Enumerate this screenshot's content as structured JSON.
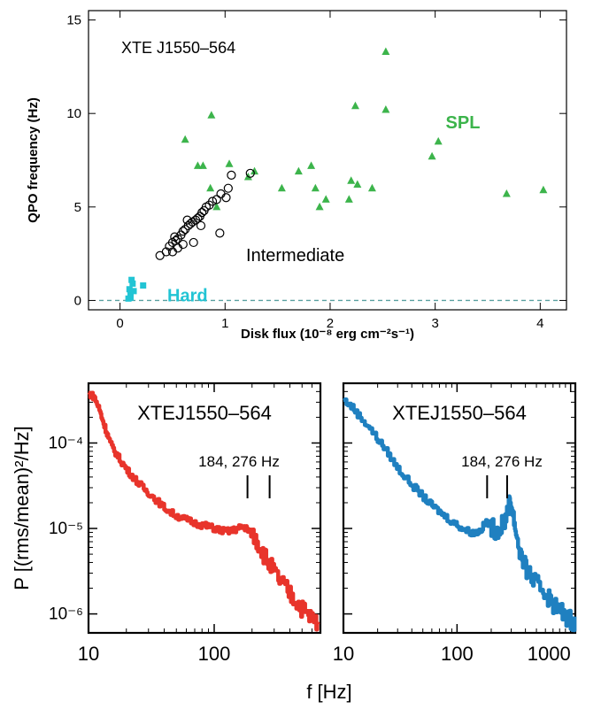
{
  "chart_data": [
    {
      "type": "scatter",
      "annotation": "XTE J1550–564",
      "xlabel": "Disk flux (10⁻⁸ erg cm⁻²s⁻¹)",
      "ylabel": "QPO frequency (Hz)",
      "xlim": [
        -0.3,
        4.25
      ],
      "ylim": [
        -0.5,
        15.5
      ],
      "xticks": [
        "0",
        "1",
        "2",
        "3",
        "4"
      ],
      "yticks": [
        "0",
        "5",
        "10",
        "15"
      ],
      "reference_line": {
        "y": 0,
        "style": "dashed",
        "color": "#5aa0a0"
      },
      "region_labels": [
        {
          "text": "SPL",
          "x": 3.1,
          "y": 9.2,
          "color": "#3cb44b"
        },
        {
          "text": "Intermediate",
          "x": 1.2,
          "y": 2.1,
          "color": "#000000"
        },
        {
          "text": "Hard",
          "x": 0.45,
          "y": -0.05,
          "color": "#22c4d4"
        }
      ],
      "series": [
        {
          "name": "SPL",
          "marker": "triangle",
          "color": "#3cb44b",
          "points": [
            [
              0.62,
              8.6
            ],
            [
              0.74,
              7.2
            ],
            [
              0.79,
              7.2
            ],
            [
              0.87,
              9.9
            ],
            [
              0.92,
              5.0
            ],
            [
              0.86,
              6.0
            ],
            [
              1.04,
              7.3
            ],
            [
              1.22,
              6.6
            ],
            [
              1.28,
              6.9
            ],
            [
              1.54,
              6.0
            ],
            [
              1.7,
              6.9
            ],
            [
              1.82,
              7.2
            ],
            [
              1.86,
              6.0
            ],
            [
              1.9,
              5.0
            ],
            [
              1.96,
              5.4
            ],
            [
              2.18,
              5.4
            ],
            [
              2.2,
              6.4
            ],
            [
              2.26,
              6.2
            ],
            [
              2.24,
              10.4
            ],
            [
              2.4,
              6.0
            ],
            [
              2.53,
              10.2
            ],
            [
              2.53,
              13.3
            ],
            [
              2.97,
              7.7
            ],
            [
              3.03,
              8.5
            ],
            [
              3.68,
              5.7
            ],
            [
              4.03,
              5.9
            ]
          ]
        },
        {
          "name": "Intermediate",
          "marker": "open-circle",
          "color": "#000000",
          "points": [
            [
              0.38,
              2.4
            ],
            [
              0.44,
              2.6
            ],
            [
              0.47,
              2.9
            ],
            [
              0.5,
              3.1
            ],
            [
              0.53,
              3.2
            ],
            [
              0.55,
              3.3
            ],
            [
              0.58,
              3.5
            ],
            [
              0.6,
              3.7
            ],
            [
              0.62,
              3.8
            ],
            [
              0.65,
              4.0
            ],
            [
              0.67,
              4.1
            ],
            [
              0.69,
              4.2
            ],
            [
              0.72,
              4.3
            ],
            [
              0.74,
              4.4
            ],
            [
              0.76,
              4.5
            ],
            [
              0.78,
              4.7
            ],
            [
              0.8,
              4.8
            ],
            [
              0.82,
              5.0
            ],
            [
              0.85,
              5.1
            ],
            [
              0.88,
              5.3
            ],
            [
              0.92,
              5.4
            ],
            [
              0.96,
              5.7
            ],
            [
              1.01,
              5.5
            ],
            [
              1.03,
              6.0
            ],
            [
              1.06,
              6.7
            ],
            [
              1.24,
              6.8
            ],
            [
              0.95,
              3.6
            ],
            [
              0.7,
              3.1
            ],
            [
              0.6,
              3.0
            ],
            [
              0.55,
              2.8
            ],
            [
              0.52,
              3.4
            ],
            [
              0.64,
              4.3
            ],
            [
              0.77,
              4.0
            ],
            [
              0.5,
              2.6
            ]
          ]
        },
        {
          "name": "Hard",
          "marker": "square",
          "color": "#22c4d4",
          "points": [
            [
              0.08,
              0.1
            ],
            [
              0.1,
              0.35
            ],
            [
              0.09,
              0.6
            ],
            [
              0.12,
              0.9
            ],
            [
              0.11,
              1.1
            ],
            [
              0.1,
              0.15
            ],
            [
              0.13,
              0.5
            ],
            [
              0.22,
              0.8
            ]
          ]
        }
      ]
    },
    {
      "type": "line",
      "title": "XTEJ1550–564",
      "annotation": "184, 276 Hz",
      "marker_lines_hz": [
        184,
        276
      ],
      "xscale": "log",
      "yscale": "log",
      "xlim": [
        10,
        700
      ],
      "ylim": [
        6e-07,
        0.0005
      ],
      "ylabel": "P [(rms/mean)²/Hz]",
      "yticks": [
        "10⁻⁴",
        "10⁻⁵",
        "10⁻⁶"
      ],
      "xticks": [
        "10",
        "100"
      ],
      "color": "#e8342b",
      "series": [
        {
          "x": [
            10,
            11,
            12,
            13,
            14,
            15,
            17,
            19,
            21,
            24,
            27,
            30,
            35,
            40,
            46,
            53,
            61,
            70,
            80,
            90,
            100,
            110,
            125,
            140,
            155,
            170,
            180,
            190,
            210,
            230,
            250,
            280,
            310,
            350,
            400,
            450,
            500,
            560,
            620,
            680
          ],
          "y": [
            0.00038,
            0.00035,
            0.00026,
            0.00018,
            0.00013,
            9.5e-05,
            7e-05,
            5.5e-05,
            4.5e-05,
            3.6e-05,
            3e-05,
            2.6e-05,
            2.1e-05,
            1.75e-05,
            1.5e-05,
            1.35e-05,
            1.25e-05,
            1.15e-05,
            1.1e-05,
            1.05e-05,
            1e-05,
            9.6e-06,
            9.2e-06,
            9.5e-06,
            1e-05,
            1.05e-05,
            1e-05,
            9.2e-06,
            7.8e-06,
            6.2e-06,
            4.8e-06,
            3.6e-06,
            2.8e-06,
            2.2e-06,
            1.7e-06,
            1.4e-06,
            1.15e-06,
            9.5e-07,
            8.5e-07,
            8e-07
          ]
        }
      ]
    },
    {
      "type": "line",
      "title": "XTEJ1550–564",
      "annotation": "184, 276 Hz",
      "marker_lines_hz": [
        184,
        276
      ],
      "xscale": "log",
      "yscale": "log",
      "xlim": [
        10,
        1100
      ],
      "ylim": [
        6e-07,
        0.0005
      ],
      "xticks": [
        "10",
        "100",
        "1000"
      ],
      "xlabel": "f [Hz]",
      "color": "#1f80c0",
      "series": [
        {
          "x": [
            10,
            12,
            14,
            17,
            20,
            24,
            28,
            33,
            40,
            48,
            56,
            65,
            75,
            90,
            105,
            120,
            140,
            160,
            180,
            200,
            220,
            245,
            265,
            280,
            295,
            310,
            330,
            360,
            400,
            450,
            500,
            560,
            630,
            700,
            800,
            900,
            1000,
            1100
          ],
          "y": [
            0.00032,
            0.00026,
            0.0002,
            0.00015,
            0.00011,
            8e-05,
            5.8e-05,
            4.3e-05,
            3.2e-05,
            2.5e-05,
            2e-05,
            1.7e-05,
            1.45e-05,
            1.2e-05,
            1.05e-05,
            9.5e-06,
            8.8e-06,
            9.5e-06,
            1.2e-05,
            1.05e-05,
            9.5e-06,
            1.05e-05,
            1.3e-05,
            1.8e-05,
            2e-05,
            1.5e-05,
            9e-06,
            5e-06,
            3.4e-06,
            2.7e-06,
            2.2e-06,
            2e-06,
            1.6e-06,
            1.3e-06,
            1.1e-06,
            9.5e-07,
            8.5e-07,
            8e-07
          ]
        }
      ]
    }
  ],
  "shared_ylabel": "P [(rms/mean)²/Hz]",
  "shared_xlabel": "f [Hz]"
}
